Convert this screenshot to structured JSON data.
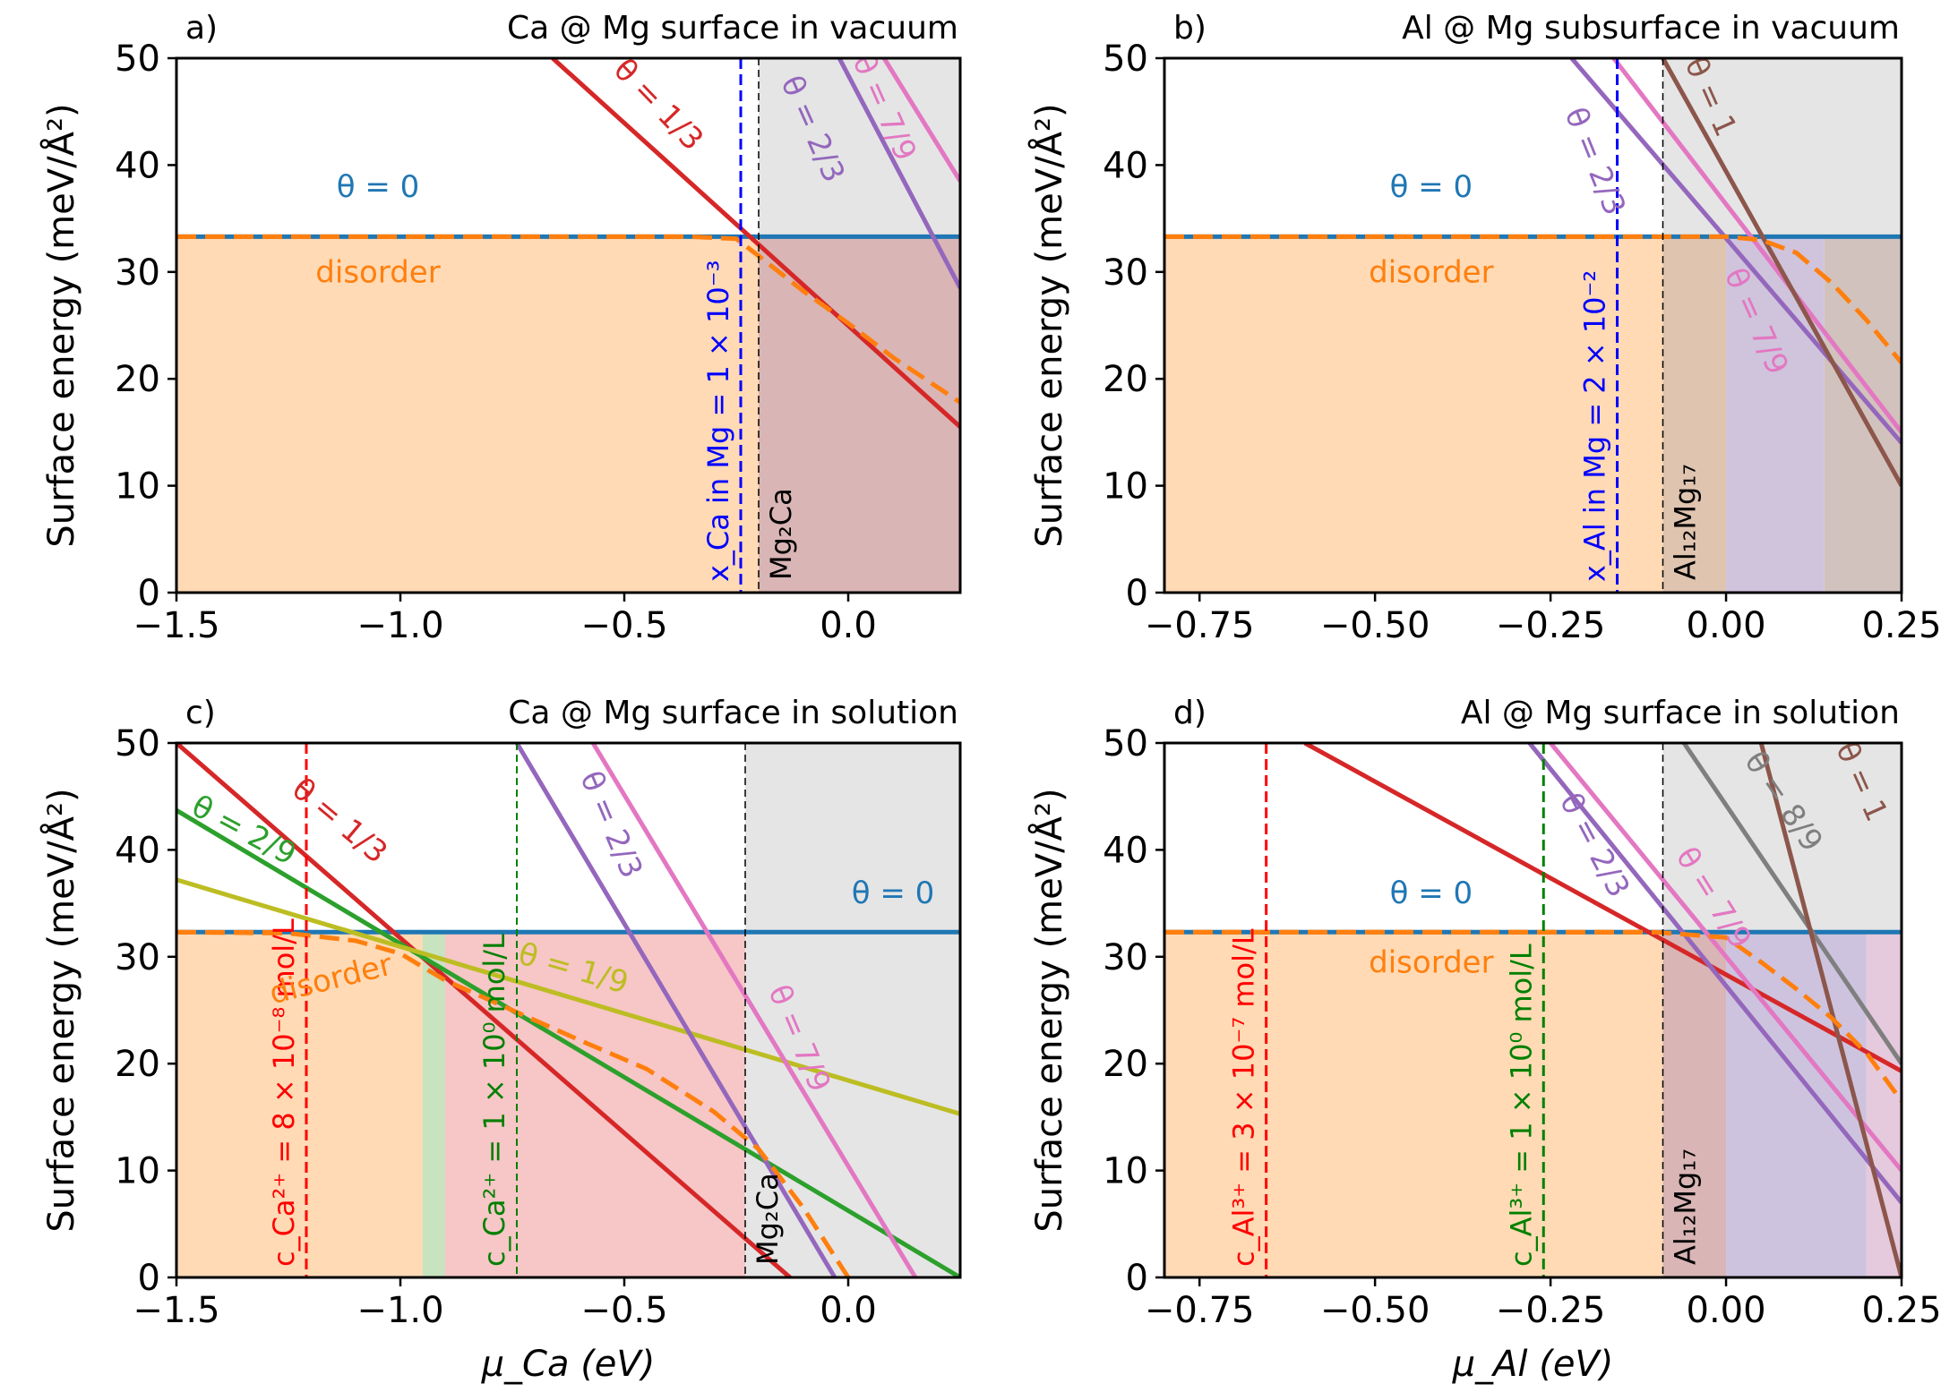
{
  "figure": {
    "ylabel_common": "Surface energy (meV/Å²)"
  },
  "colors": {
    "theta0": "#1f77b4",
    "disorder": "#ff7f0e",
    "t1_3": "#d62728",
    "t2_3": "#9467bd",
    "t7_9": "#e377c2",
    "t1": "#8c564b",
    "t8_9": "#7f7f7f",
    "t2_9": "#2ca02c",
    "t1_9": "#bcbd22",
    "blue": "#0000ff",
    "red": "#ff0000",
    "green": "#008000"
  },
  "chart_data": [
    {
      "id": "a",
      "type": "line",
      "panel_label": "a)",
      "title": "Ca @ Mg surface in vacuum",
      "ylabel": "Surface energy (meV/Å²)",
      "xlabel": "",
      "xlim": [
        -1.5,
        0.25
      ],
      "ylim": [
        0,
        50
      ],
      "xticks": [
        -1.5,
        -1.0,
        -0.5,
        0.0
      ],
      "xtick_labels": [
        "−1.5",
        "−1.0",
        "−0.5",
        "0.0"
      ],
      "yticks": [
        0,
        10,
        20,
        30,
        40,
        50
      ],
      "ytick_labels": [
        "0",
        "10",
        "20",
        "30",
        "40",
        "50"
      ],
      "bound_phase": {
        "x": -0.2,
        "label": "Mg₂Ca"
      },
      "shades": [
        {
          "x0": -1.5,
          "x1": -0.2,
          "color": "#ffdab5"
        },
        {
          "x0": -0.2,
          "x1": 0.25,
          "color": "#d9b5b5"
        }
      ],
      "series": [
        {
          "name": "θ = 0",
          "color": "#1f77b4",
          "style": "solid",
          "x": [
            -1.5,
            0.25
          ],
          "y": [
            33.3,
            33.3
          ]
        },
        {
          "name": "θ = 1/3",
          "color": "#d62728",
          "style": "solid",
          "x": [
            -0.66,
            0.25
          ],
          "y": [
            50.0,
            15.5
          ]
        },
        {
          "name": "θ = 2/3",
          "color": "#9467bd",
          "style": "solid",
          "x": [
            -0.02,
            0.25
          ],
          "y": [
            50.0,
            28.5
          ]
        },
        {
          "name": "θ = 7/9",
          "color": "#e377c2",
          "style": "solid",
          "x": [
            0.08,
            0.25
          ],
          "y": [
            50.0,
            38.5
          ]
        },
        {
          "name": "disorder",
          "color": "#ff7f0e",
          "style": "dashed",
          "x": [
            -1.5,
            -0.35,
            -0.25,
            -0.2,
            -0.1,
            0.0,
            0.1,
            0.25
          ],
          "y": [
            33.3,
            33.3,
            33.1,
            31.5,
            28.2,
            25.2,
            22.0,
            17.8
          ]
        }
      ],
      "vlines": [
        {
          "x": -0.24,
          "color": "#0000ff",
          "style": "dashed",
          "width": 3,
          "label": "x_Ca in Mg = 1 × 10⁻³",
          "label_color": "#0000ff"
        },
        {
          "x": -0.2,
          "color": "#000000",
          "style": "dashed",
          "width": 1.5,
          "label": "",
          "label_color": "#000000"
        }
      ],
      "labels": [
        {
          "text": "θ = 0",
          "color": "#1f77b4",
          "x": -1.05,
          "y": 37,
          "rot": 0
        },
        {
          "text": "θ = 1/3",
          "color": "#d62728",
          "x": -0.44,
          "y": 45,
          "rot": 46
        },
        {
          "text": "θ = 2/3",
          "color": "#9467bd",
          "x": -0.1,
          "y": 43,
          "rot": 66
        },
        {
          "text": "θ = 7/9",
          "color": "#e377c2",
          "x": 0.06,
          "y": 45,
          "rot": 66
        },
        {
          "text": "disorder",
          "color": "#ff7f0e",
          "x": -1.05,
          "y": 29,
          "rot": 0
        }
      ]
    },
    {
      "id": "b",
      "type": "line",
      "panel_label": "b)",
      "title": "Al @ Mg subsurface in vacuum",
      "ylabel": "Surface energy (meV/Å²)",
      "xlabel": "",
      "xlim": [
        -0.8,
        0.25
      ],
      "ylim": [
        0,
        50
      ],
      "xticks": [
        -0.75,
        -0.5,
        -0.25,
        0.0,
        0.25
      ],
      "xtick_labels": [
        "−0.75",
        "−0.50",
        "−0.25",
        "0.00",
        "0.25"
      ],
      "yticks": [
        0,
        10,
        20,
        30,
        40,
        50
      ],
      "ytick_labels": [
        "0",
        "10",
        "20",
        "30",
        "40",
        "50"
      ],
      "bound_phase": {
        "x": -0.09,
        "label": "Al₁₂Mg₁₇"
      },
      "shades": [
        {
          "x0": -0.8,
          "x1": -0.09,
          "color": "#ffdab5"
        },
        {
          "x0": -0.09,
          "x1": 0.0,
          "color": "#dfc4b0"
        },
        {
          "x0": 0.0,
          "x1": 0.14,
          "color": "#cfc4dc"
        },
        {
          "x0": 0.14,
          "x1": 0.25,
          "color": "#d2c2bd"
        }
      ],
      "series": [
        {
          "name": "θ = 0",
          "color": "#1f77b4",
          "style": "solid",
          "x": [
            -0.8,
            0.25
          ],
          "y": [
            33.3,
            33.3
          ]
        },
        {
          "name": "θ = 2/3",
          "color": "#9467bd",
          "style": "solid",
          "x": [
            -0.22,
            0.25
          ],
          "y": [
            50.0,
            14.0
          ]
        },
        {
          "name": "θ = 7/9",
          "color": "#e377c2",
          "style": "solid",
          "x": [
            -0.16,
            0.25
          ],
          "y": [
            50.0,
            15.0
          ]
        },
        {
          "name": "θ = 1",
          "color": "#8c564b",
          "style": "solid",
          "x": [
            -0.09,
            0.25
          ],
          "y": [
            50.0,
            10.0
          ]
        },
        {
          "name": "disorder",
          "color": "#ff7f0e",
          "style": "dashed",
          "x": [
            -0.8,
            -0.1,
            0.0,
            0.05,
            0.1,
            0.15,
            0.2,
            0.25
          ],
          "y": [
            33.3,
            33.3,
            33.3,
            33.0,
            31.8,
            29.0,
            25.5,
            21.5
          ]
        }
      ],
      "vlines": [
        {
          "x": -0.155,
          "color": "#0000ff",
          "style": "dashed",
          "width": 3,
          "label": "x_Al in Mg = 2 × 10⁻²",
          "label_color": "#0000ff"
        },
        {
          "x": -0.09,
          "color": "#000000",
          "style": "dashed",
          "width": 1.5,
          "label": "",
          "label_color": "#000000"
        }
      ],
      "labels": [
        {
          "text": "θ = 0",
          "color": "#1f77b4",
          "x": -0.42,
          "y": 37,
          "rot": 0
        },
        {
          "text": "θ = 2/3",
          "color": "#9467bd",
          "x": -0.2,
          "y": 40,
          "rot": 68
        },
        {
          "text": "θ = 7/9",
          "color": "#e377c2",
          "x": 0.03,
          "y": 25,
          "rot": 66
        },
        {
          "text": "θ = 1",
          "color": "#8c564b",
          "x": -0.035,
          "y": 46,
          "rot": 66
        },
        {
          "text": "disorder",
          "color": "#ff7f0e",
          "x": -0.42,
          "y": 29,
          "rot": 0
        }
      ]
    },
    {
      "id": "c",
      "type": "line",
      "panel_label": "c)",
      "title": "Ca @ Mg surface in solution",
      "ylabel": "Surface energy (meV/Å²)",
      "xlabel": "μ_Ca (eV)",
      "xlim": [
        -1.5,
        0.25
      ],
      "ylim": [
        0,
        50
      ],
      "xticks": [
        -1.5,
        -1.0,
        -0.5,
        0.0
      ],
      "xtick_labels": [
        "−1.5",
        "−1.0",
        "−0.5",
        "0.0"
      ],
      "yticks": [
        0,
        10,
        20,
        30,
        40,
        50
      ],
      "ytick_labels": [
        "0",
        "10",
        "20",
        "30",
        "40",
        "50"
      ],
      "bound_phase": {
        "x": -0.23,
        "label": "Mg₂Ca"
      },
      "shades": [
        {
          "x0": -1.5,
          "x1": -0.95,
          "color": "#ffdab5"
        },
        {
          "x0": -0.95,
          "x1": -0.9,
          "color": "#c7e3c0"
        },
        {
          "x0": -0.9,
          "x1": -0.23,
          "color": "#f7c6c6"
        },
        {
          "x0": -0.23,
          "x1": 0.25,
          "color": "#e5e5e5"
        }
      ],
      "series": [
        {
          "name": "θ = 0",
          "color": "#1f77b4",
          "style": "solid",
          "x": [
            -1.5,
            0.25
          ],
          "y": [
            32.3,
            32.3
          ]
        },
        {
          "name": "θ = 1/3",
          "color": "#d62728",
          "style": "solid",
          "x": [
            -1.5,
            -0.13
          ],
          "y": [
            50.0,
            0.0
          ]
        },
        {
          "name": "θ = 2/9",
          "color": "#2ca02c",
          "style": "solid",
          "x": [
            -1.5,
            0.25
          ],
          "y": [
            43.7,
            0.0
          ]
        },
        {
          "name": "θ = 1/9",
          "color": "#bcbd22",
          "style": "solid",
          "x": [
            -1.5,
            0.25
          ],
          "y": [
            37.2,
            15.3
          ]
        },
        {
          "name": "θ = 2/3",
          "color": "#9467bd",
          "style": "solid",
          "x": [
            -0.74,
            -0.03
          ],
          "y": [
            50.0,
            0.0
          ]
        },
        {
          "name": "θ = 7/9",
          "color": "#e377c2",
          "style": "solid",
          "x": [
            -0.57,
            0.15
          ],
          "y": [
            50.0,
            0.0
          ]
        },
        {
          "name": "disorder",
          "color": "#ff7f0e",
          "style": "dashed",
          "x": [
            -1.5,
            -1.25,
            -1.1,
            -1.0,
            -0.9,
            -0.75,
            -0.6,
            -0.45,
            -0.3,
            -0.2,
            -0.1,
            0.0
          ],
          "y": [
            32.3,
            32.2,
            31.5,
            30.3,
            27.8,
            25.0,
            22.2,
            19.5,
            15.5,
            12.0,
            6.5,
            0.0
          ]
        }
      ],
      "vlines": [
        {
          "x": -1.21,
          "color": "#ff0000",
          "style": "dashed",
          "width": 3,
          "label": "c_Ca²⁺ = 8 × 10⁻⁸ mol/L",
          "label_color": "#ff0000"
        },
        {
          "x": -0.74,
          "color": "#008000",
          "style": "dashed",
          "width": 2,
          "label": "c_Ca²⁺ = 1 × 10⁰ mol/L",
          "label_color": "#008000"
        },
        {
          "x": -0.23,
          "color": "#000000",
          "style": "dashed",
          "width": 1.5,
          "label": "",
          "label_color": "#000000"
        }
      ],
      "labels": [
        {
          "text": "θ = 0",
          "color": "#1f77b4",
          "x": 0.1,
          "y": 35,
          "rot": 0
        },
        {
          "text": "θ = 1/3",
          "color": "#d62728",
          "x": -1.15,
          "y": 42,
          "rot": 40
        },
        {
          "text": "θ = 2/9",
          "color": "#2ca02c",
          "x": -1.36,
          "y": 41,
          "rot": 28
        },
        {
          "text": "θ = 1/9",
          "color": "#bcbd22",
          "x": -0.62,
          "y": 28,
          "rot": 16
        },
        {
          "text": "θ = 2/3",
          "color": "#9467bd",
          "x": -0.55,
          "y": 42,
          "rot": 67
        },
        {
          "text": "θ = 7/9",
          "color": "#e377c2",
          "x": -0.13,
          "y": 22,
          "rot": 67
        },
        {
          "text": "disorder",
          "color": "#ff7f0e",
          "x": -1.15,
          "y": 27,
          "rot": -14
        }
      ]
    },
    {
      "id": "d",
      "type": "line",
      "panel_label": "d)",
      "title": "Al @ Mg surface in solution",
      "ylabel": "Surface energy (meV/Å²)",
      "xlabel": "μ_Al (eV)",
      "xlim": [
        -0.8,
        0.25
      ],
      "ylim": [
        0,
        50
      ],
      "xticks": [
        -0.75,
        -0.5,
        -0.25,
        0.0,
        0.25
      ],
      "xtick_labels": [
        "−0.75",
        "−0.50",
        "−0.25",
        "0.00",
        "0.25"
      ],
      "yticks": [
        0,
        10,
        20,
        30,
        40,
        50
      ],
      "ytick_labels": [
        "0",
        "10",
        "20",
        "30",
        "40",
        "50"
      ],
      "bound_phase": {
        "x": -0.09,
        "label": "Al₁₂Mg₁₇"
      },
      "shades": [
        {
          "x0": -0.8,
          "x1": -0.09,
          "color": "#ffdab5"
        },
        {
          "x0": -0.09,
          "x1": 0.0,
          "color": "#d9b5b5"
        },
        {
          "x0": 0.0,
          "x1": 0.2,
          "color": "#cdc3de"
        },
        {
          "x0": 0.2,
          "x1": 0.25,
          "color": "#e5c9dc"
        }
      ],
      "series": [
        {
          "name": "θ = 0",
          "color": "#1f77b4",
          "style": "solid",
          "x": [
            -0.8,
            0.25
          ],
          "y": [
            32.3,
            32.3
          ]
        },
        {
          "name": "θ = 1/3",
          "color": "#d62728",
          "style": "solid",
          "x": [
            -0.6,
            0.25
          ],
          "y": [
            50.0,
            19.3
          ]
        },
        {
          "name": "θ = 2/3",
          "color": "#9467bd",
          "style": "solid",
          "x": [
            -0.28,
            0.25
          ],
          "y": [
            50.0,
            7.0
          ]
        },
        {
          "name": "θ = 7/9",
          "color": "#e377c2",
          "style": "solid",
          "x": [
            -0.25,
            0.25
          ],
          "y": [
            50.0,
            10.0
          ]
        },
        {
          "name": "θ = 8/9",
          "color": "#7f7f7f",
          "style": "solid",
          "x": [
            -0.06,
            0.25
          ],
          "y": [
            50.0,
            20.0
          ]
        },
        {
          "name": "θ = 1",
          "color": "#8c564b",
          "style": "solid",
          "x": [
            0.05,
            0.25
          ],
          "y": [
            50.0,
            0.0
          ]
        },
        {
          "name": "disorder",
          "color": "#ff7f0e",
          "style": "dashed",
          "x": [
            -0.8,
            -0.1,
            0.0,
            0.05,
            0.1,
            0.15,
            0.2,
            0.25
          ],
          "y": [
            32.3,
            32.3,
            31.8,
            29.5,
            27.0,
            24.3,
            21.0,
            16.5
          ]
        }
      ],
      "vlines": [
        {
          "x": -0.655,
          "color": "#ff0000",
          "style": "dashed",
          "width": 3,
          "label": "c_Al³⁺ = 3 × 10⁻⁷ mol/L",
          "label_color": "#ff0000"
        },
        {
          "x": -0.26,
          "color": "#008000",
          "style": "dashed",
          "width": 3,
          "label": "c_Al³⁺ = 1 × 10⁰ mol/L",
          "label_color": "#008000"
        },
        {
          "x": -0.09,
          "color": "#000000",
          "style": "dashed",
          "width": 1.5,
          "label": "",
          "label_color": "#000000"
        }
      ],
      "labels": [
        {
          "text": "θ = 0",
          "color": "#1f77b4",
          "x": -0.42,
          "y": 35,
          "rot": 0
        },
        {
          "text": "θ = 2/3",
          "color": "#9467bd",
          "x": -0.2,
          "y": 40,
          "rot": 62
        },
        {
          "text": "θ = 7/9",
          "color": "#e377c2",
          "x": -0.03,
          "y": 35,
          "rot": 58
        },
        {
          "text": "θ = 8/9",
          "color": "#7f7f7f",
          "x": 0.07,
          "y": 44,
          "rot": 56
        },
        {
          "text": "θ = 1",
          "color": "#8c564b",
          "x": 0.18,
          "y": 46,
          "rot": 66
        },
        {
          "text": "disorder",
          "color": "#ff7f0e",
          "x": -0.42,
          "y": 28.5,
          "rot": 0
        }
      ]
    }
  ]
}
